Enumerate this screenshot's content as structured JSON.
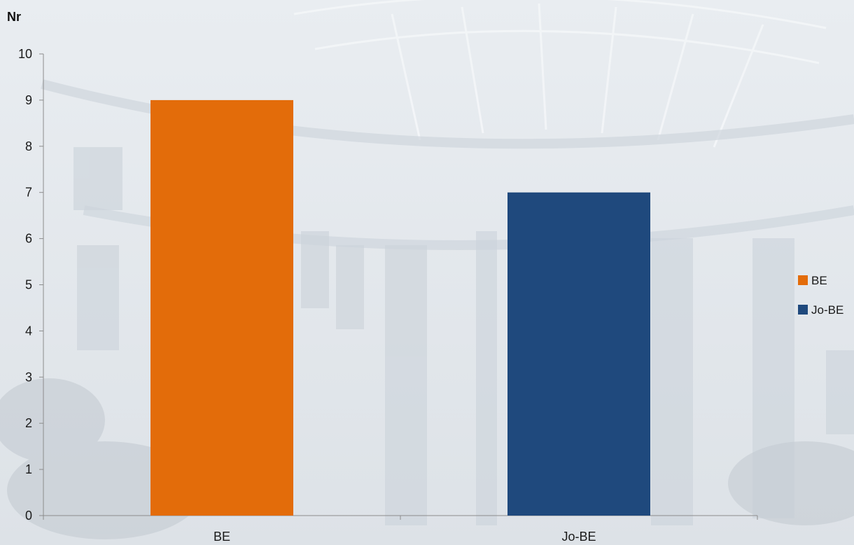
{
  "chart_data": {
    "type": "bar",
    "title": "",
    "ylabel": "Nr",
    "xlabel": "",
    "categories": [
      "BE",
      "Jo-BE"
    ],
    "values": [
      9,
      7
    ],
    "ylim": [
      0,
      10
    ],
    "yticks": [
      "0",
      "1",
      "2",
      "3",
      "4",
      "5",
      "6",
      "7",
      "8",
      "9",
      "10"
    ],
    "grid": false,
    "legend_position": "right",
    "legend": [
      {
        "name": "BE",
        "color": "#E36C0A"
      },
      {
        "name": "Jo-BE",
        "color": "#1F497D"
      }
    ],
    "colors": [
      "#E36C0A",
      "#1F497D"
    ]
  },
  "background": {
    "type": "faded-building-photo",
    "tone": "#d7dde3"
  }
}
